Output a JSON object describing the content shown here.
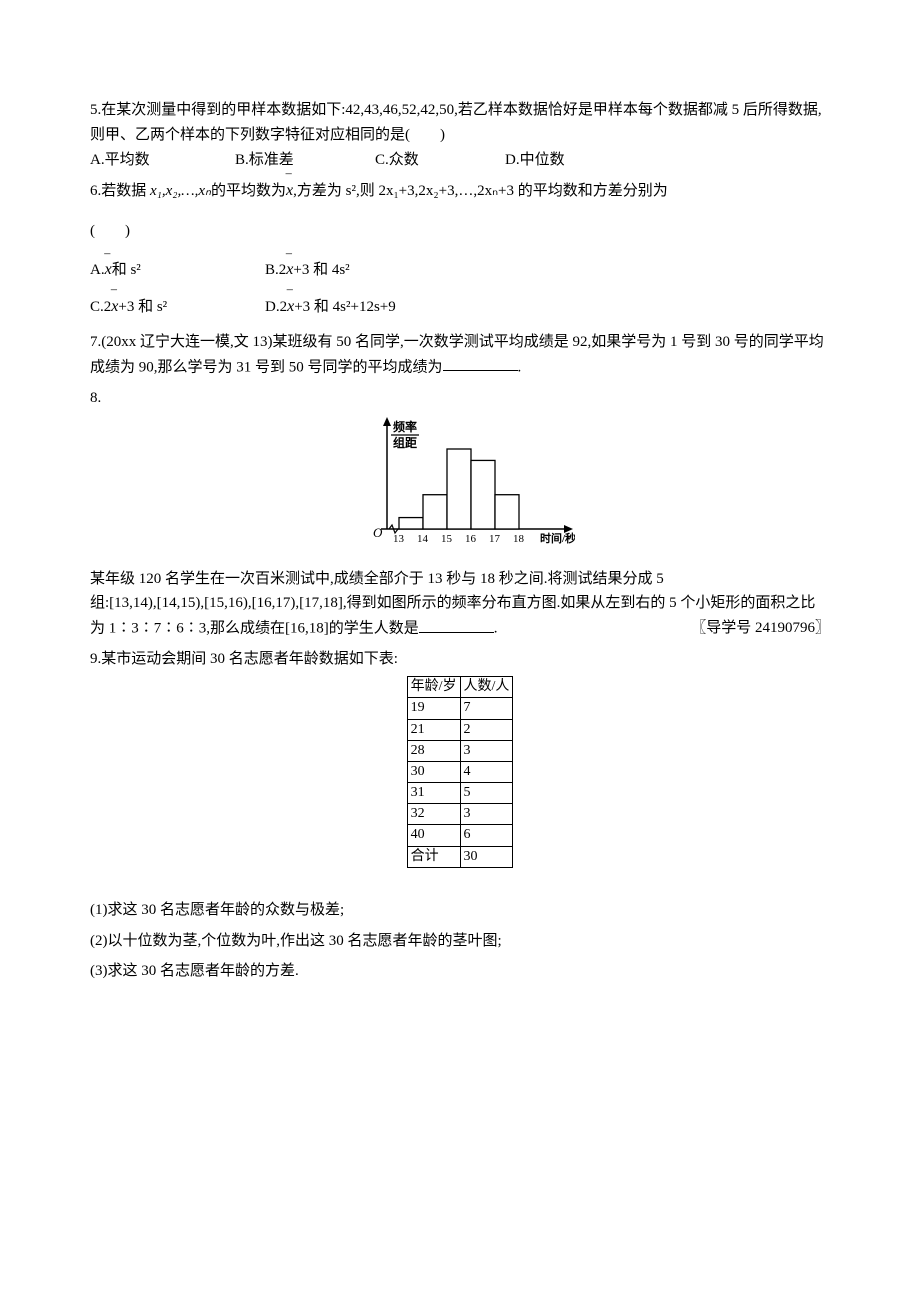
{
  "q5": {
    "stem": "5.在某次测量中得到的甲样本数据如下:42,43,46,52,42,50,若乙样本数据恰好是甲样本每个数据都减 5 后所得数据,则甲、乙两个样本的下列数字特征对应相同的是(　　)",
    "opts": {
      "a": "A.平均数",
      "b": "B.标准差",
      "c": "C.众数",
      "d": "D.中位数"
    }
  },
  "q6": {
    "stem_pre": "6.若数据 ",
    "stem_seq": "x₁,x₂,…,xₙ",
    "stem_mid1": "的平均数为",
    "stem_mid2": ",方差为 s²,则 2x₁+3,2x₂+3,…,2xₙ+3 的平均数和方差分别为",
    "paren": "(　　)",
    "opt_a_pre": "A.",
    "opt_a_suf": "和 s²",
    "opt_b_pre": "B.2",
    "opt_b_suf": "+3 和 4s²",
    "opt_c_pre": "C.2",
    "opt_c_suf": "+3 和 s²",
    "opt_d_pre": "D.2",
    "opt_d_suf": "+3 和 4s²+12s+9"
  },
  "q7": {
    "stem_pre": "7.(20xx 辽宁大连一模,文 13)某班级有 50 名同学,一次数学测试平均成绩是 92,如果学号为 1 号到 30 号的同学平均成绩为 90,那么学号为 31 号到 50 号同学的平均成绩为",
    "stem_suf": "."
  },
  "q8": {
    "num": "8.",
    "chart": {
      "ylabel_top": "频率",
      "ylabel_bot": "组距",
      "xlabel": "时间/秒",
      "ticks": [
        "13",
        "14",
        "15",
        "16",
        "17",
        "18"
      ],
      "heights": [
        0.12,
        0.36,
        0.84,
        0.72,
        0.36
      ],
      "axis_color": "#000000",
      "bar_fill": "#ffffff",
      "bar_stroke": "#000000",
      "bg": "#ffffff"
    },
    "text_line1": "某年级 120 名学生在一次百米测试中,成绩全部介于 13 秒与 18 秒之间.将测试结果分成 5",
    "ref": "〖导学号 24190796〗",
    "text_line2_pre": "组:[13,14),[14,15),[15,16),[16,17),[17,18],得到如图所示的频率分布直方图.如果从左到右的 5 个小矩形的面积之比为 1∶3∶7∶6∶3,那么成绩在[16,18]的学生人数是",
    "text_line2_suf": "."
  },
  "q9": {
    "stem": "9.某市运动会期间 30 名志愿者年龄数据如下表:",
    "table": {
      "header": [
        "年龄/岁",
        "人数/人"
      ],
      "rows": [
        [
          "19",
          "7"
        ],
        [
          "21",
          "2"
        ],
        [
          "28",
          "3"
        ],
        [
          "30",
          "4"
        ],
        [
          "31",
          "5"
        ],
        [
          "32",
          "3"
        ],
        [
          "40",
          "6"
        ],
        [
          "合计",
          "30"
        ]
      ]
    },
    "sub": {
      "s1": "(1)求这 30 名志愿者年龄的众数与极差;",
      "s2": "(2)以十位数为茎,个位数为叶,作出这 30 名志愿者年龄的茎叶图;",
      "s3": "(3)求这 30 名志愿者年龄的方差."
    }
  }
}
